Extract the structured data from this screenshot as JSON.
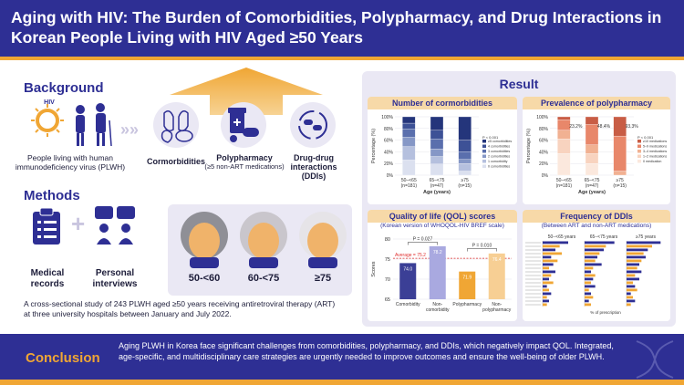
{
  "header": {
    "title": "Aging with HIV: The Burden of Comorbidities, Polypharmacy, and Drug Interactions in Korean People Living with HIV Aged ≥50 Years"
  },
  "background": {
    "title": "Background",
    "hiv_label": "HIV",
    "plwh_text": "People living with human immunodeficiency virus (PLWH)",
    "items": [
      {
        "label": "Cormorbidities",
        "sub": ""
      },
      {
        "label": "Polypharmacy",
        "sub": "(≥5 non-ART medications)"
      },
      {
        "label": "Drug-drug interactions (DDIs)",
        "sub": ""
      }
    ]
  },
  "methods": {
    "title": "Methods",
    "records": "Medical records",
    "plus": "+",
    "interviews": "Personal interviews",
    "age_groups": [
      "50-<60",
      "60-<75",
      "≥75"
    ],
    "description": "A cross-sectional study of 243 PLWH aged ≥50 years receiving antiretroviral therapy (ART) at three university hospitals between January and July 2022."
  },
  "result": {
    "title": "Result",
    "comorbidities": {
      "title": "Number of cormorbidities",
      "ylabel": "Percentage (%)",
      "xlabel": "Age (years)",
      "pvalue": "P < 0.001",
      "categories": [
        "50–<65\n(n=181)",
        "65–<75\n(n=47)",
        "≥75\n(n=15)"
      ],
      "cat_top": [
        "50–<65",
        "65–<75",
        "≥75"
      ],
      "cat_bottom": [
        "(n=181)",
        "(n=47)",
        "(n=15)"
      ],
      "yticks": [
        "0%",
        "20%",
        "40%",
        "60%",
        "80%",
        "100%"
      ],
      "legend": [
        "≥5 comorbidities",
        "4 comorbidities",
        "3 comorbidities",
        "2 comorbidities",
        "1 comorbidity",
        "0 comorbidities"
      ]
    },
    "polypharmacy": {
      "title": "Prevalence of polypharmacy",
      "ylabel": "Percentage (%)",
      "xlabel": "Age (years)",
      "pvalue": "P < 0.001",
      "percents": [
        "23.2%",
        "48.4%",
        "93.3%"
      ],
      "cat_top": [
        "50–<65",
        "65–<75",
        "≥75"
      ],
      "cat_bottom": [
        "(n=181)",
        "(n=47)",
        "(n=15)"
      ],
      "yticks": [
        "0%",
        "20%",
        "40%",
        "60%",
        "80%",
        "100%"
      ],
      "legend": [
        "≥10 medications",
        "5–9 medications",
        "3–4 medications",
        "1–2 medications",
        "0 medication"
      ]
    },
    "qol": {
      "title": "Quality of life (QOL) scores",
      "subtitle": "(Korean version of WHOQOL-HIV BREF scale)",
      "ylabel": "Scores",
      "average": "Average = 75.2",
      "p1": "P = 0.027",
      "p2": "P = 0.010",
      "yticks": [
        "65",
        "70",
        "75",
        "80"
      ],
      "bars": [
        {
          "label": "Comorbidity",
          "value": 74.0,
          "text": "74.0"
        },
        {
          "label": "Non-comorbidity",
          "value": 78.2,
          "text": "78.2"
        },
        {
          "label": "Polypharmacy",
          "value": 71.9,
          "text": "71.9"
        },
        {
          "label": "Non-polypharmacy",
          "value": 76.4,
          "text": "76.4"
        }
      ]
    },
    "ddi": {
      "title": "Frequency of DDIs",
      "subtitle": "(Between ART and non-ART medications)",
      "groups": [
        "50−<65 years",
        "65−<75 years",
        "≥75 years"
      ],
      "xlabel": "% of prescription"
    }
  },
  "conclusion": {
    "title": "Conclusion",
    "text": "Aging PLWH in Korea face significant challenges from comorbidities, polypharmacy, and DDIs, which negatively impact QOL. Integrated, age-specific, and multidisciplinary care strategies are urgently needed to improve outcomes and ensure the well-being of older PLWH."
  },
  "chart_data": [
    {
      "type": "bar",
      "title": "Number of cormorbidities",
      "categories": [
        "50–<65 (n=181)",
        "65–<75 (n=47)",
        "≥75 (n=15)"
      ],
      "stacked": true,
      "series": [
        {
          "name": "0 comorbidities",
          "values": [
            26,
            19,
            7
          ]
        },
        {
          "name": "1 comorbidity",
          "values": [
            23,
            13,
            13
          ]
        },
        {
          "name": "2 comorbidities",
          "values": [
            16,
            13,
            7
          ]
        },
        {
          "name": "3 comorbidities",
          "values": [
            14,
            17,
            13
          ]
        },
        {
          "name": "4 comorbidities",
          "values": [
            10,
            15,
            20
          ]
        },
        {
          "name": "≥5 comorbidities",
          "values": [
            11,
            23,
            40
          ]
        }
      ],
      "ylim": [
        0,
        100
      ]
    },
    {
      "type": "bar",
      "title": "Prevalence of polypharmacy",
      "categories": [
        "50–<65 (n=181)",
        "65–<75 (n=47)",
        "≥75 (n=15)"
      ],
      "stacked": true,
      "series": [
        {
          "name": "0 medication",
          "values": [
            37,
            20,
            0
          ]
        },
        {
          "name": "1–2 medications",
          "values": [
            25,
            17,
            0
          ]
        },
        {
          "name": "3–4 medications",
          "values": [
            15,
            15,
            7
          ]
        },
        {
          "name": "5–9 medications",
          "values": [
            18,
            35,
            60
          ]
        },
        {
          "name": "≥10 medications",
          "values": [
            5,
            13,
            33
          ]
        }
      ],
      "ylim": [
        0,
        100
      ]
    },
    {
      "type": "bar",
      "title": "Quality of life (QOL) scores",
      "categories": [
        "Comorbidity",
        "Non-comorbidity",
        "Polypharmacy",
        "Non-polypharmacy"
      ],
      "values": [
        74.0,
        78.2,
        71.9,
        76.4
      ],
      "ylabel": "Scores",
      "ylim": [
        65,
        80
      ]
    },
    {
      "type": "bar",
      "title": "Frequency of DDIs",
      "orientation": "horizontal",
      "groups": [
        "50−<65 years",
        "65−<75 years",
        "≥75 years"
      ],
      "rows": 18,
      "series": [
        {
          "name": "50−<65 years",
          "values": [
            12,
            8,
            6,
            9,
            4,
            7,
            5,
            3,
            6,
            4,
            3,
            5,
            2,
            3,
            4,
            2,
            3,
            2
          ]
        },
        {
          "name": "65−<75 years",
          "values": [
            14,
            10,
            9,
            7,
            6,
            5,
            8,
            4,
            3,
            5,
            4,
            3,
            5,
            2,
            3,
            4,
            2,
            3
          ]
        },
        {
          "name": "≥75 years",
          "values": [
            16,
            12,
            10,
            8,
            9,
            7,
            6,
            5,
            7,
            4,
            6,
            3,
            4,
            5,
            2,
            3,
            4,
            2
          ]
        }
      ]
    }
  ]
}
